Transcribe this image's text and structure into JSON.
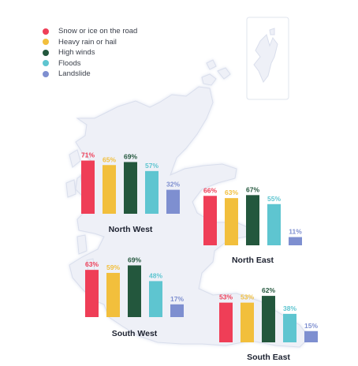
{
  "legend": [
    {
      "label": "Snow or ice on the road",
      "color": "#ef3e57"
    },
    {
      "label": "Heavy rain or hail",
      "color": "#f2bf3c"
    },
    {
      "label": "High winds",
      "color": "#23573d"
    },
    {
      "label": "Floods",
      "color": "#5ec5d0"
    },
    {
      "label": "Landslide",
      "color": "#7e8fd0"
    }
  ],
  "chart_data": {
    "type": "bar",
    "series_names": [
      "Snow or ice on the road",
      "Heavy rain or hail",
      "High winds",
      "Floods",
      "Landslide"
    ],
    "colors": [
      "#ef3e57",
      "#f2bf3c",
      "#23573d",
      "#5ec5d0",
      "#7e8fd0"
    ],
    "unit": "%",
    "groups": [
      {
        "name": "North West",
        "values": [
          71,
          65,
          69,
          57,
          32
        ],
        "labels": [
          "71%",
          "65%",
          "69%",
          "57%",
          "32%"
        ]
      },
      {
        "name": "North East",
        "values": [
          66,
          63,
          67,
          55,
          11
        ],
        "labels": [
          "66%",
          "63%",
          "67%",
          "55%",
          "11%"
        ]
      },
      {
        "name": "South West",
        "values": [
          63,
          59,
          69,
          48,
          17
        ],
        "labels": [
          "63%",
          "59%",
          "69%",
          "48%",
          "17%"
        ]
      },
      {
        "name": "South East",
        "values": [
          53,
          53,
          62,
          38,
          15
        ],
        "labels": [
          "53%",
          "53%",
          "62%",
          "38%",
          "15%"
        ]
      }
    ]
  }
}
